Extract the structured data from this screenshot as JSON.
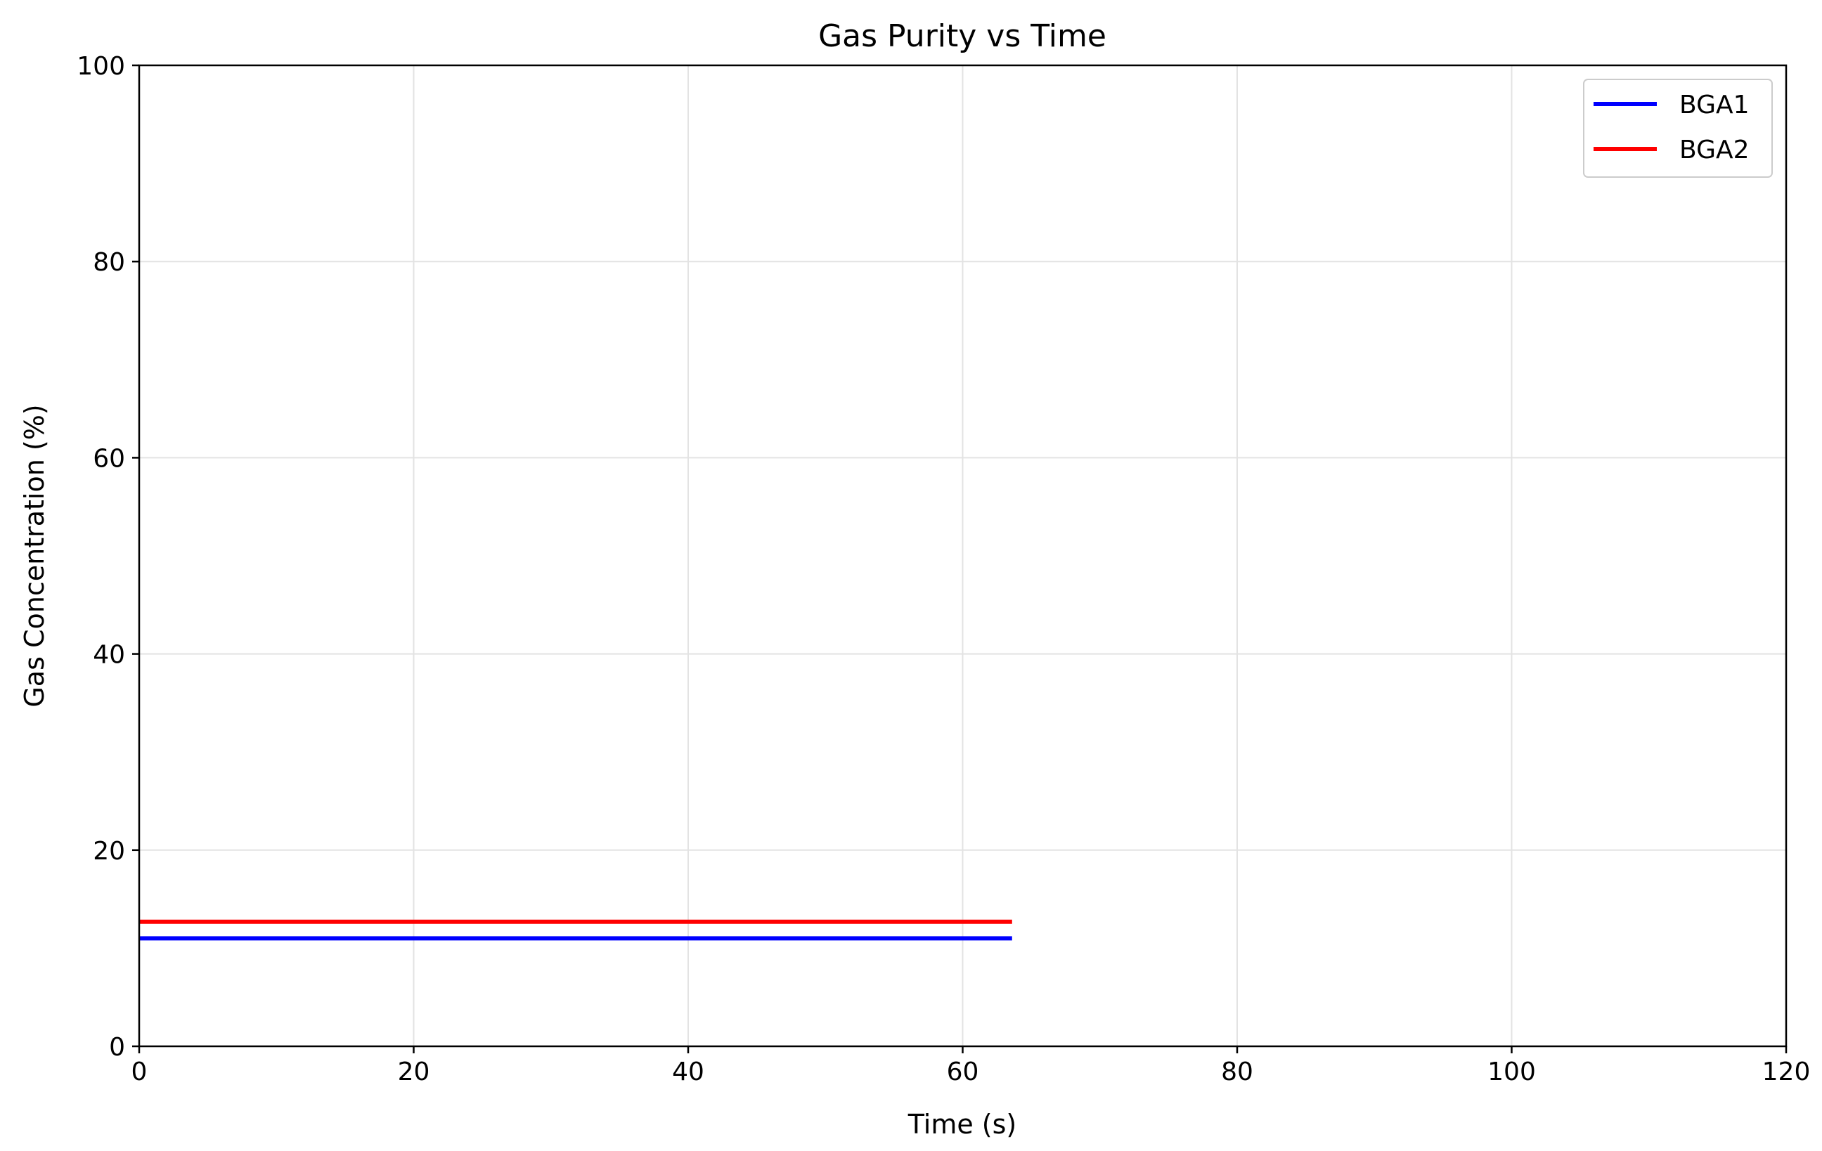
{
  "chart_data": {
    "type": "line",
    "title": "Gas Purity vs Time",
    "xlabel": "Time (s)",
    "ylabel": "Gas Concentration (%)",
    "xlim": [
      0,
      120
    ],
    "ylim": [
      0,
      100
    ],
    "xticks": [
      0,
      20,
      40,
      60,
      80,
      100,
      120
    ],
    "yticks": [
      0,
      20,
      40,
      60,
      80,
      100
    ],
    "grid": true,
    "legend_position": "top-right",
    "series": [
      {
        "name": "BGA1",
        "color": "#0000ff",
        "x": [
          0,
          63.6
        ],
        "y": [
          11,
          11
        ]
      },
      {
        "name": "BGA2",
        "color": "#ff0000",
        "x": [
          0,
          63.6
        ],
        "y": [
          12.7,
          12.7
        ]
      }
    ]
  }
}
